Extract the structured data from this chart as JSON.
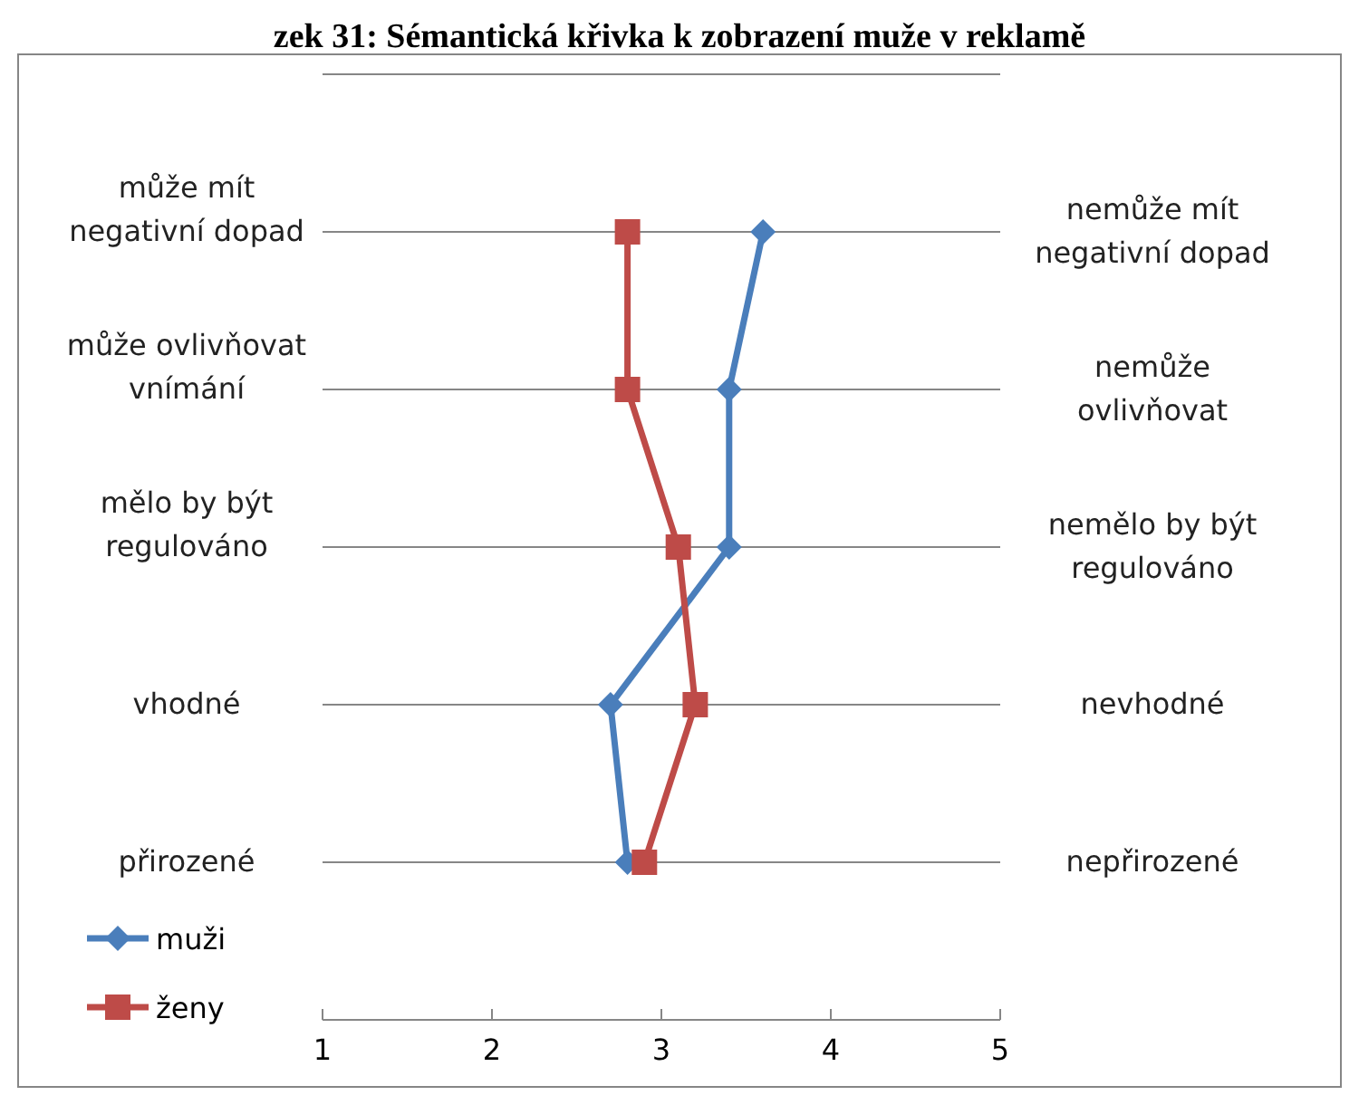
{
  "chart_data": {
    "type": "line",
    "orientation": "horizontal",
    "title": "zek 31: Sémantická křivka k zobrazení muže v reklamě",
    "categories": [
      null,
      "může mít negativní dopad",
      "může ovlivňovat vnímání",
      "mělo by být regulováno",
      "vhodné",
      "přirozené"
    ],
    "y2_categories": [
      null,
      "nemůže mít negativní dopad",
      "nemůže ovlivňovat",
      "nemělo by být regulováno",
      "nevhodné",
      "nepřirozené"
    ],
    "series": [
      {
        "name": "muži",
        "color": "#4a7ebb",
        "marker": "diamond",
        "values": [
          null,
          3.6,
          3.4,
          3.4,
          2.7,
          2.8
        ]
      },
      {
        "name": "ženy",
        "color": "#be4b48",
        "marker": "square",
        "values": [
          null,
          2.8,
          2.8,
          3.1,
          3.2,
          2.9
        ]
      }
    ],
    "xlim": [
      1,
      5
    ],
    "xticks": [
      1,
      2,
      3,
      4,
      5
    ],
    "grid": "y",
    "legend": "bottom left",
    "line_style": "solid"
  }
}
